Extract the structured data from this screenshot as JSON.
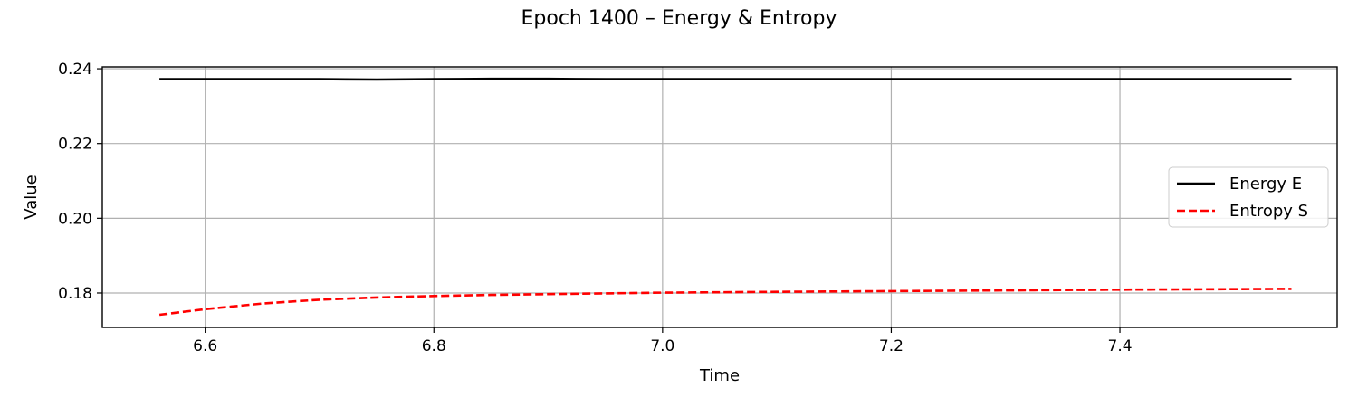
{
  "chart_data": {
    "type": "line",
    "title": "Epoch 1400 – Energy & Entropy",
    "xlabel": "Time",
    "ylabel": "Value",
    "xlim": [
      6.51,
      7.59
    ],
    "ylim": [
      0.1708,
      0.2405
    ],
    "xticks": [
      6.6,
      6.8,
      7.0,
      7.2,
      7.4
    ],
    "xtick_labels": [
      "6.6",
      "6.8",
      "7.0",
      "7.2",
      "7.4"
    ],
    "yticks": [
      0.18,
      0.2,
      0.22,
      0.24
    ],
    "ytick_labels": [
      "0.18",
      "0.20",
      "0.22",
      "0.24"
    ],
    "grid": true,
    "legend_position": "center-right",
    "series": [
      {
        "name": "Energy E",
        "color": "#000000",
        "style": "solid",
        "x": [
          6.56,
          6.64,
          6.7,
          6.75,
          6.8,
          6.85,
          6.9,
          6.95,
          7.0,
          7.1,
          7.2,
          7.3,
          7.4,
          7.55
        ],
        "y": [
          0.2372,
          0.2372,
          0.2372,
          0.2371,
          0.2372,
          0.2373,
          0.2373,
          0.2372,
          0.2372,
          0.2372,
          0.2372,
          0.2372,
          0.2372,
          0.2372
        ]
      },
      {
        "name": "Entropy S",
        "color": "#ff0000",
        "style": "dashed",
        "x": [
          6.56,
          6.6,
          6.65,
          6.7,
          6.75,
          6.8,
          6.85,
          6.9,
          7.0,
          7.1,
          7.2,
          7.3,
          7.4,
          7.55
        ],
        "y": [
          0.1742,
          0.1757,
          0.1772,
          0.1782,
          0.1788,
          0.1792,
          0.1795,
          0.1797,
          0.1801,
          0.1803,
          0.1805,
          0.1807,
          0.1809,
          0.1811
        ]
      }
    ]
  }
}
